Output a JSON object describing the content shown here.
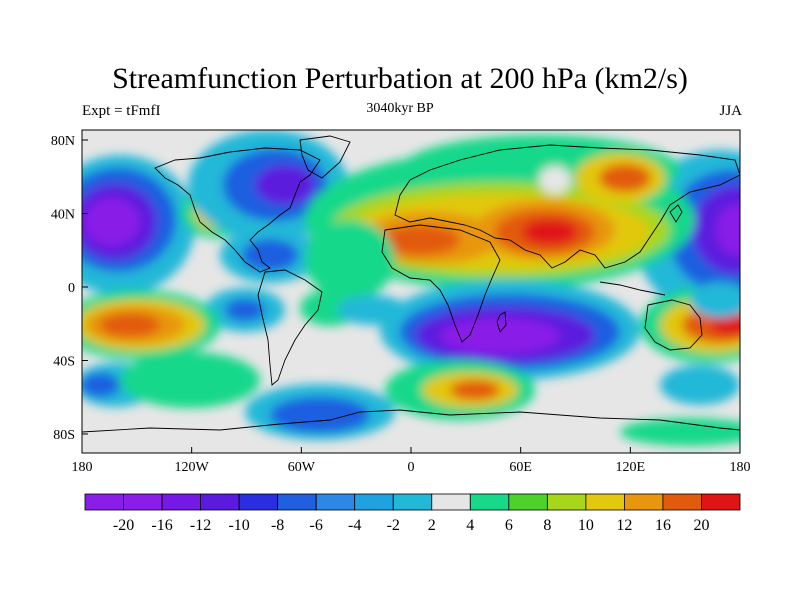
{
  "title": "Streamfunction Perturbation at 200 hPa (km2/s)",
  "left_string": "Expt = tFmfI",
  "center_string": "3040kyr BP",
  "right_string": "JJA",
  "y_ticks": [
    "80N",
    "40N",
    "0",
    "40S",
    "80S"
  ],
  "x_ticks": [
    "180",
    "120W",
    "60W",
    "0",
    "60E",
    "120E",
    "180"
  ],
  "colorbar": {
    "labels": [
      "-20",
      "-16",
      "-12",
      "-10",
      "-8",
      "-6",
      "-4",
      "-2",
      "2",
      "4",
      "6",
      "8",
      "10",
      "12",
      "16",
      "20"
    ],
    "colors": [
      "#8a1ee8",
      "#7519e6",
      "#5b1bde",
      "#2a2ee0",
      "#1f5fe0",
      "#2c88e6",
      "#1ea2e0",
      "#22b8d8",
      "#e6e6e6",
      "#18d88a",
      "#4ed12a",
      "#a8d61a",
      "#e2c80e",
      "#e8960e",
      "#e25a0e",
      "#e01414"
    ]
  },
  "colors": {
    "land_outline": "#000000",
    "background": "#ffffff"
  }
}
